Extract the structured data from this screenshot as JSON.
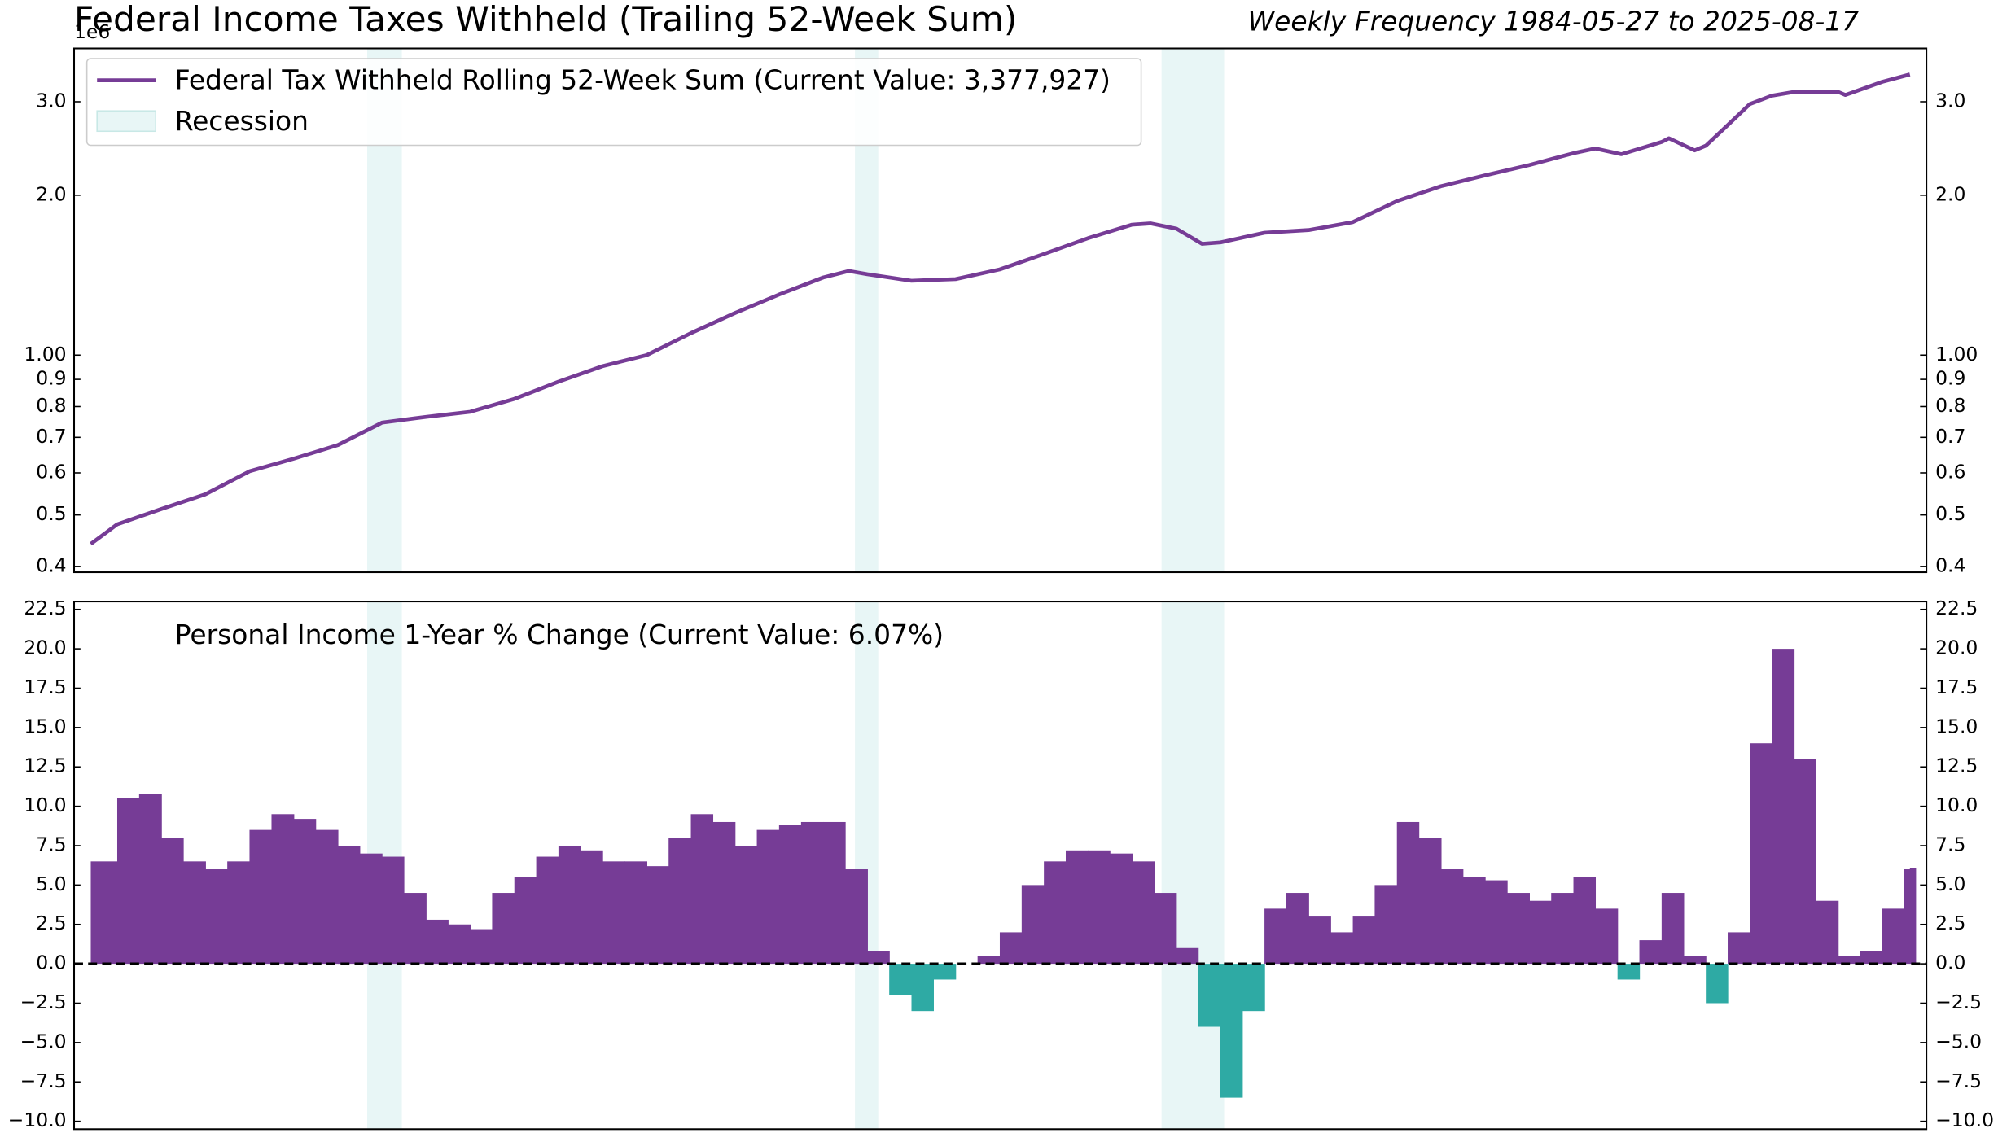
{
  "recessions": {
    "label": "Recession",
    "color": "#d5efee",
    "spans": [
      [
        "1990-09-01",
        "1991-06-15"
      ],
      [
        "2001-09-20",
        "2002-04-01"
      ],
      [
        "2008-09-01",
        "2010-02-01"
      ]
    ]
  },
  "chart_data": [
    {
      "type": "line",
      "title": "Federal Income Taxes Withheld (Trailing 52-Week Sum)",
      "subtitle": "Weekly Frequency 1984-05-27 to 2025-08-17",
      "axis_offset_label": "1e6",
      "log_scale": true,
      "legend": "upper left",
      "xlim": [
        "1984-01-10",
        "2026-01-01"
      ],
      "x": [
        "1984-05-27",
        "1985-01-01",
        "1986-01-01",
        "1987-01-01",
        "1988-01-01",
        "1989-01-01",
        "1990-01-01",
        "1991-01-01",
        "1992-01-01",
        "1993-01-01",
        "1994-01-01",
        "1995-01-01",
        "1996-01-01",
        "1997-01-01",
        "1998-01-01",
        "1999-01-01",
        "2000-01-01",
        "2001-01-01",
        "2001-08-01",
        "2002-01-01",
        "2003-01-01",
        "2004-01-01",
        "2005-01-01",
        "2006-01-01",
        "2007-01-01",
        "2008-01-01",
        "2008-06-01",
        "2009-01-01",
        "2009-08-01",
        "2010-01-01",
        "2011-01-01",
        "2012-01-01",
        "2013-01-01",
        "2014-01-01",
        "2015-01-01",
        "2016-01-01",
        "2017-01-01",
        "2018-01-01",
        "2018-07-01",
        "2019-02-01",
        "2020-01-01",
        "2020-03-01",
        "2020-10-01",
        "2021-01-01",
        "2021-07-01",
        "2022-01-01",
        "2022-07-01",
        "2023-01-01",
        "2024-01-01",
        "2024-03-01",
        "2025-01-01",
        "2025-08-17"
      ],
      "series": [
        {
          "name": "Federal Tax Withheld Rolling 52-Week Sum (Current Value: 3,377,927)",
          "color": "#763c96",
          "values": [
            441000,
            480000,
            513000,
            547000,
            604000,
            638000,
            677000,
            746000,
            765000,
            782000,
            827000,
            891000,
            953000,
            1000000,
            1100000,
            1200000,
            1300000,
            1400000,
            1440000,
            1420000,
            1380000,
            1390000,
            1450000,
            1550000,
            1660000,
            1760000,
            1770000,
            1730000,
            1620000,
            1630000,
            1700000,
            1720000,
            1780000,
            1950000,
            2080000,
            2180000,
            2280000,
            2400000,
            2450000,
            2390000,
            2520000,
            2560000,
            2430000,
            2480000,
            2710000,
            2970000,
            3080000,
            3130000,
            3130000,
            3090000,
            3270000,
            3377927
          ]
        }
      ],
      "ylim": [
        390000,
        3780000
      ],
      "yticks": [
        {
          "value": 400000,
          "label": "0.4"
        },
        {
          "value": 500000,
          "label": "0.5"
        },
        {
          "value": 600000,
          "label": "0.6"
        },
        {
          "value": 700000,
          "label": "0.7"
        },
        {
          "value": 800000,
          "label": "0.8"
        },
        {
          "value": 900000,
          "label": "0.9"
        },
        {
          "value": 1000000,
          "label": "1.00"
        },
        {
          "value": 2000000,
          "label": "2.0"
        },
        {
          "value": 3000000,
          "label": "3.0"
        }
      ]
    },
    {
      "type": "bar",
      "log_scale": false,
      "reference_line": 0,
      "xlim": [
        "1984-01-10",
        "2026-01-01"
      ],
      "x": [
        "1984-05-27",
        "1985-01-01",
        "1985-07-01",
        "1986-01-01",
        "1986-07-01",
        "1987-01-01",
        "1987-07-01",
        "1988-01-01",
        "1988-07-01",
        "1989-01-01",
        "1989-07-01",
        "1990-01-01",
        "1990-07-01",
        "1991-01-01",
        "1991-07-01",
        "1992-01-01",
        "1992-07-01",
        "1993-01-01",
        "1993-07-01",
        "1994-01-01",
        "1994-07-01",
        "1995-01-01",
        "1995-07-01",
        "1996-01-01",
        "1996-07-01",
        "1997-01-01",
        "1997-07-01",
        "1998-01-01",
        "1998-07-01",
        "1999-01-01",
        "1999-07-01",
        "2000-01-01",
        "2000-07-01",
        "2001-01-01",
        "2001-07-01",
        "2002-01-01",
        "2002-07-01",
        "2003-01-01",
        "2003-07-01",
        "2004-01-01",
        "2004-07-01",
        "2005-01-01",
        "2005-07-01",
        "2006-01-01",
        "2006-07-01",
        "2007-01-01",
        "2007-07-01",
        "2008-01-01",
        "2008-07-01",
        "2009-01-01",
        "2009-07-01",
        "2010-01-01",
        "2010-07-01",
        "2011-01-01",
        "2011-07-01",
        "2012-01-01",
        "2012-07-01",
        "2013-01-01",
        "2013-07-01",
        "2014-01-01",
        "2014-07-01",
        "2015-01-01",
        "2015-07-01",
        "2016-01-01",
        "2016-07-01",
        "2017-01-01",
        "2017-07-01",
        "2018-01-01",
        "2018-07-01",
        "2019-01-01",
        "2019-07-01",
        "2020-01-01",
        "2020-07-01",
        "2021-01-01",
        "2021-07-01",
        "2022-01-01",
        "2022-07-01",
        "2023-01-01",
        "2023-07-01",
        "2024-01-01",
        "2024-07-01",
        "2025-01-01",
        "2025-07-01",
        "2025-08-17"
      ],
      "series": [
        {
          "name": "Personal Income 1-Year % Change (Current Value: 6.07%)",
          "color": "#763c96",
          "negative_color": "#2eaaa4",
          "values": [
            6.5,
            10.5,
            10.8,
            8.0,
            6.5,
            6.0,
            6.5,
            8.5,
            9.5,
            9.2,
            8.5,
            7.5,
            7.0,
            6.8,
            4.5,
            2.8,
            2.5,
            2.2,
            4.5,
            5.5,
            6.8,
            7.5,
            7.2,
            6.5,
            6.5,
            6.2,
            8.0,
            9.5,
            9.0,
            7.5,
            8.5,
            8.8,
            9.0,
            9.0,
            6.0,
            0.8,
            -2.0,
            -3.0,
            -1.0,
            0.0,
            0.5,
            2.0,
            5.0,
            6.5,
            7.2,
            7.2,
            7.0,
            6.5,
            4.5,
            1.0,
            -4.0,
            -8.5,
            -3.0,
            3.5,
            4.5,
            3.0,
            2.0,
            3.0,
            5.0,
            9.0,
            8.0,
            6.0,
            5.5,
            5.3,
            4.5,
            4.0,
            4.5,
            5.5,
            3.5,
            -1.0,
            1.5,
            4.5,
            0.5,
            -2.5,
            2.0,
            14.0,
            20.0,
            13.0,
            4.0,
            0.5,
            0.8,
            3.5,
            6.0,
            6.07
          ]
        }
      ],
      "ylim": [
        -10.5,
        23
      ],
      "yticks": [
        {
          "value": -10,
          "label": "−10.0"
        },
        {
          "value": -7.5,
          "label": "−7.5"
        },
        {
          "value": -5,
          "label": "−5.0"
        },
        {
          "value": -2.5,
          "label": "−2.5"
        },
        {
          "value": 0,
          "label": "0.0"
        },
        2.5,
        {
          "value": 5,
          "label": "5.0"
        },
        7.5,
        {
          "value": 10,
          "label": "10.0"
        },
        12.5,
        {
          "value": 15,
          "label": "15.0"
        },
        17.5,
        {
          "value": 20,
          "label": "20.0"
        },
        22.5
      ]
    }
  ]
}
